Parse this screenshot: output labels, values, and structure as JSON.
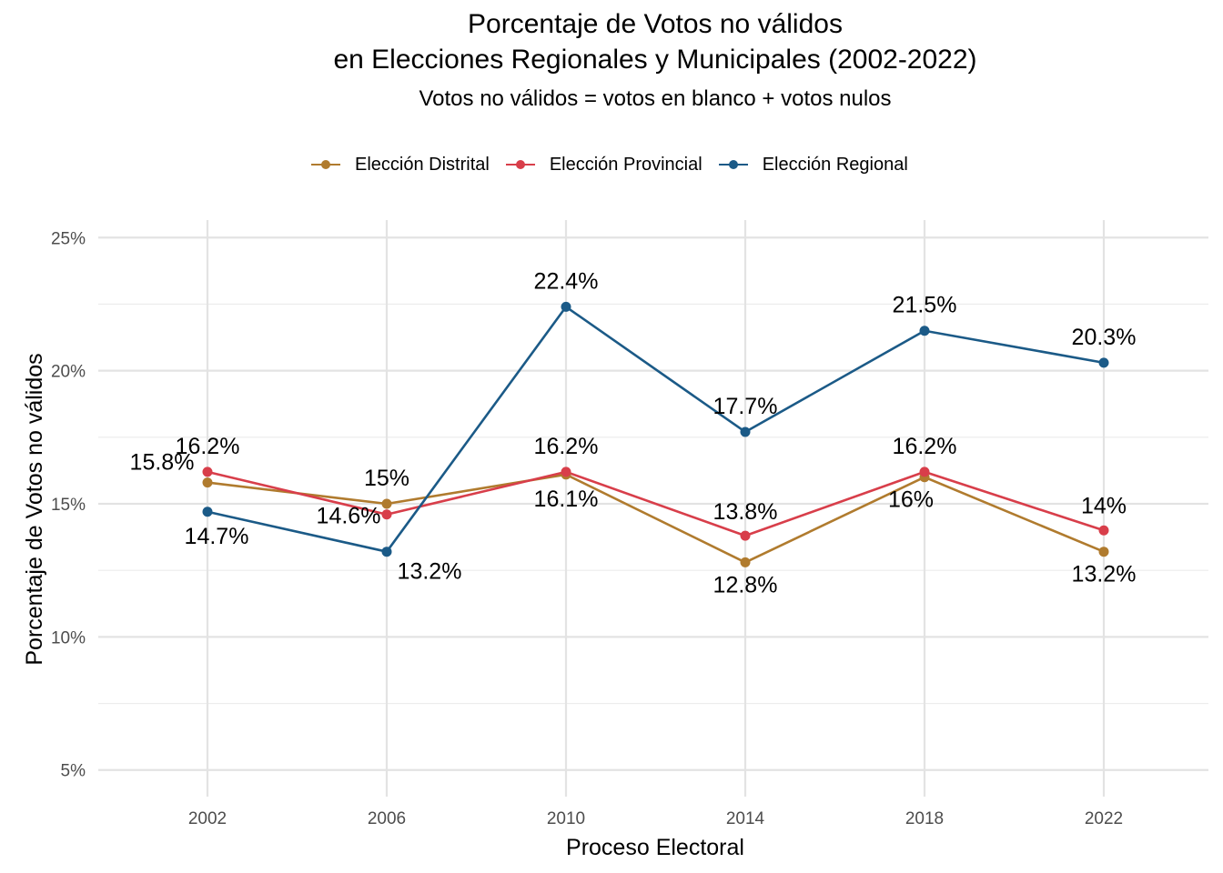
{
  "chart_data": {
    "type": "line",
    "title_line1": "Porcentaje de Votos no válidos",
    "title_line2": "en Elecciones Regionales y Municipales (2002-2022)",
    "subtitle": "Votos no válidos = votos en blanco + votos nulos",
    "xlabel": "Proceso Electoral",
    "ylabel": "Porcentaje de Votos no válidos",
    "x": [
      "2002",
      "2006",
      "2010",
      "2014",
      "2018",
      "2022"
    ],
    "ylim": [
      4,
      26
    ],
    "yticks": [
      5,
      10,
      15,
      20,
      25
    ],
    "ytick_labels": [
      "5%",
      "10%",
      "15%",
      "20%",
      "25%"
    ],
    "grid": true,
    "legend_position": "top",
    "series": [
      {
        "name": "Elección Distrital",
        "color": "#B07B2E",
        "values": [
          15.8,
          15.0,
          16.1,
          12.8,
          16.0,
          13.2
        ],
        "labels": [
          "15.8%",
          "15%",
          "16.1%",
          "12.8%",
          "16%",
          "13.2%"
        ]
      },
      {
        "name": "Elección Provincial",
        "color": "#D83E4A",
        "values": [
          16.2,
          14.6,
          16.2,
          13.8,
          16.2,
          14.0
        ],
        "labels": [
          "16.2%",
          "14.6%",
          "16.2%",
          "13.8%",
          "16.2%",
          "14%"
        ]
      },
      {
        "name": "Elección Regional",
        "color": "#1B5A87",
        "values": [
          14.7,
          13.2,
          22.4,
          17.7,
          21.5,
          20.3
        ],
        "labels": [
          "14.7%",
          "13.2%",
          "22.4%",
          "17.7%",
          "21.5%",
          "20.3%"
        ]
      }
    ]
  }
}
